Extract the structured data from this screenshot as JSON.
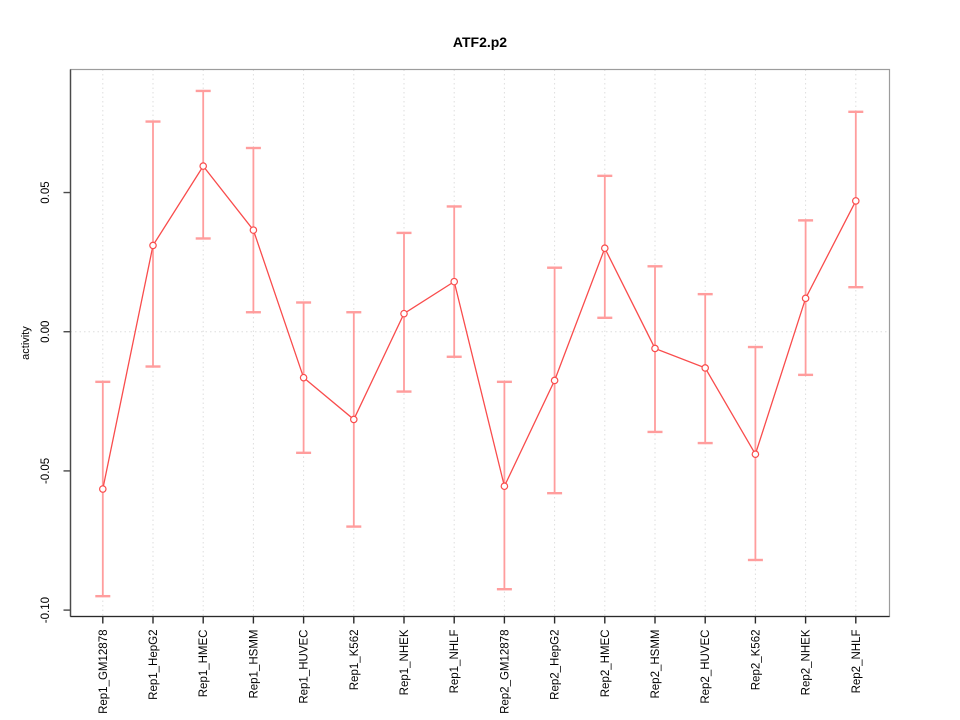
{
  "chart_data": {
    "type": "line",
    "title": "ATF2.p2",
    "xlabel": "",
    "ylabel": "activity",
    "legend": "none",
    "grid": {
      "vertical": "dotted line at every category",
      "horizontal": "dotted line at y=0 only"
    },
    "categories": [
      "Rep1_GM12878",
      "Rep1_HepG2",
      "Rep1_HMEC",
      "Rep1_HSMM",
      "Rep1_HUVEC",
      "Rep1_K562",
      "Rep1_NHEK",
      "Rep1_NHLF",
      "Rep2_GM12878",
      "Rep2_HepG2",
      "Rep2_HMEC",
      "Rep2_HSMM",
      "Rep2_HUVEC",
      "Rep2_K562",
      "Rep2_NHEK",
      "Rep2_NHLF"
    ],
    "series": [
      {
        "name": "activity",
        "values": [
          -0.0565,
          0.031,
          0.0595,
          0.0365,
          -0.0165,
          -0.0315,
          0.0065,
          0.018,
          -0.0555,
          -0.0175,
          0.03,
          -0.006,
          -0.013,
          -0.044,
          0.012,
          0.047
        ],
        "error_upper": [
          -0.018,
          0.0755,
          0.0865,
          0.066,
          0.0105,
          0.007,
          0.0355,
          0.045,
          -0.018,
          0.023,
          0.056,
          0.0235,
          0.0135,
          -0.0055,
          0.04,
          0.079
        ],
        "error_lower": [
          -0.095,
          -0.0125,
          0.0335,
          0.007,
          -0.0435,
          -0.07,
          -0.0215,
          -0.009,
          -0.0925,
          -0.058,
          0.005,
          -0.036,
          -0.04,
          -0.082,
          -0.0155,
          0.016
        ]
      }
    ],
    "yticks": [
      {
        "value": -0.1,
        "label": "-0.10"
      },
      {
        "value": -0.05,
        "label": "-0.05"
      },
      {
        "value": 0.0,
        "label": "0.00"
      },
      {
        "value": 0.05,
        "label": "0.05"
      }
    ],
    "ylim": [
      -0.1023,
      0.0942
    ],
    "colors": {
      "line": "#f94c4c",
      "marker": "#f94c4c",
      "error_bar": "#ff9d9d",
      "grid": "#dedede",
      "box": "#9c9c9c",
      "axis_left": "#4a4a4a",
      "axis_bottom": "#2a2a2a",
      "text": "#000000",
      "background": "#ffffff"
    }
  }
}
